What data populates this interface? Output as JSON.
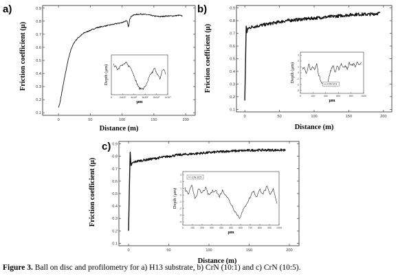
{
  "caption": {
    "label": "Figure 3.",
    "text": " Ball on disc and profilometry for a) H13 substrate, b) CrN (10:1) and c) CrN (10:5)."
  },
  "chart_data": [
    {
      "panel": "a)",
      "type": "line",
      "xlabel": "Distance (m)",
      "ylabel": "Friction coefficient (μ)",
      "xlim": [
        -25,
        215
      ],
      "ylim": [
        0.08,
        0.92
      ],
      "xticks": [
        0,
        50,
        100,
        150,
        200
      ],
      "yticks": [
        0.1,
        0.2,
        0.3,
        0.4,
        0.5,
        0.6,
        0.7,
        0.8,
        0.9
      ],
      "noise": 0.004,
      "series": [
        {
          "x": [
            0,
            2,
            5,
            10,
            15,
            20,
            25,
            30,
            35,
            40,
            45,
            50,
            55,
            60,
            70,
            80,
            90,
            100,
            105,
            108,
            110,
            112,
            115,
            120,
            130,
            140,
            150,
            160,
            170,
            180,
            190,
            195
          ],
          "y": [
            0.14,
            0.17,
            0.25,
            0.38,
            0.5,
            0.59,
            0.64,
            0.67,
            0.69,
            0.71,
            0.72,
            0.73,
            0.74,
            0.75,
            0.76,
            0.77,
            0.78,
            0.79,
            0.8,
            0.8,
            0.75,
            0.82,
            0.84,
            0.85,
            0.855,
            0.85,
            0.84,
            0.835,
            0.84,
            0.84,
            0.845,
            0.84
          ]
        }
      ],
      "inset": {
        "ylabel": "Depth (μm)",
        "xlabel": "μm",
        "xticks": [
          "0",
          "2x10²",
          "4x10²",
          "6x10²",
          "8x10²",
          "1x10³"
        ],
        "yticks": [],
        "legend": "",
        "profile": [
          0.82,
          0.78,
          0.7,
          0.72,
          0.85,
          0.8,
          0.86,
          0.88,
          0.8,
          0.75,
          0.66,
          0.5,
          0.35,
          0.2,
          0.1,
          0.12,
          0.08,
          0.18,
          0.25,
          0.42,
          0.55,
          0.6,
          0.72,
          0.62,
          0.48,
          0.4,
          0.62,
          0.7,
          0.55
        ]
      }
    },
    {
      "panel": "b)",
      "type": "line",
      "xlabel": "Distance (m)",
      "ylabel": "Friction coefficient (μ)",
      "xlim": [
        -12,
        212
      ],
      "ylim": [
        0.08,
        0.92
      ],
      "xticks": [
        0,
        50,
        100,
        150,
        200
      ],
      "yticks": [
        0.1,
        0.2,
        0.3,
        0.4,
        0.5,
        0.6,
        0.7,
        0.8,
        0.9
      ],
      "noise": 0.012,
      "series": [
        {
          "x": [
            0,
            1,
            2,
            3,
            4,
            5,
            10,
            20,
            30,
            40,
            50,
            60,
            80,
            100,
            120,
            140,
            160,
            180,
            195
          ],
          "y": [
            0.17,
            0.45,
            0.76,
            0.7,
            0.73,
            0.74,
            0.75,
            0.76,
            0.77,
            0.78,
            0.79,
            0.8,
            0.81,
            0.82,
            0.83,
            0.84,
            0.85,
            0.85,
            0.86
          ]
        }
      ],
      "inset": {
        "ylabel": "Depth (μm)",
        "xlabel": "μm",
        "xticks": [
          "0",
          "200",
          "400",
          "600",
          "800",
          "1000"
        ],
        "yticks": [
          "3",
          "2",
          "1",
          "0",
          "-1",
          "-2",
          "-3"
        ],
        "legend": "CrN 10:1",
        "profile": [
          0.62,
          0.7,
          0.48,
          0.8,
          0.55,
          0.72,
          0.6,
          0.78,
          0.45,
          0.3,
          0.18,
          0.22,
          0.15,
          0.4,
          0.6,
          0.75,
          0.52,
          0.7,
          0.62,
          0.8,
          0.66,
          0.75,
          0.6,
          0.82,
          0.72,
          0.78,
          0.7,
          0.85,
          0.74,
          0.8
        ]
      }
    },
    {
      "panel": "c)",
      "type": "line",
      "xlabel": "Distance (m)",
      "ylabel": "Friction coefficient (μ)",
      "xlim": [
        -12,
        212
      ],
      "ylim": [
        0.08,
        0.92
      ],
      "xticks": [
        0,
        50,
        100,
        150,
        200
      ],
      "yticks": [
        0.1,
        0.2,
        0.3,
        0.4,
        0.5,
        0.6,
        0.7,
        0.8,
        0.9
      ],
      "noise": 0.009,
      "series": [
        {
          "x": [
            0,
            1,
            2,
            3,
            4,
            6,
            10,
            20,
            30,
            40,
            50,
            60,
            80,
            100,
            120,
            140,
            160,
            180,
            195
          ],
          "y": [
            0.2,
            0.55,
            0.84,
            0.72,
            0.74,
            0.75,
            0.76,
            0.77,
            0.78,
            0.79,
            0.8,
            0.81,
            0.82,
            0.83,
            0.84,
            0.845,
            0.85,
            0.85,
            0.85
          ]
        }
      ],
      "inset": {
        "ylabel": "Depth (μm)",
        "xlabel": "μm",
        "xticks": [
          "0",
          "100",
          "200",
          "300",
          "400",
          "500",
          "600",
          "700",
          "800",
          "900",
          "1000"
        ],
        "yticks": [
          "3",
          "2",
          "1",
          "0",
          "-1",
          "-2",
          "-3",
          "-4"
        ],
        "legend": "CrN 10:5",
        "profile": [
          0.72,
          0.6,
          0.78,
          0.52,
          0.7,
          0.62,
          0.74,
          0.58,
          0.66,
          0.7,
          0.55,
          0.68,
          0.6,
          0.46,
          0.34,
          0.2,
          0.1,
          0.24,
          0.4,
          0.52,
          0.68,
          0.55,
          0.7,
          0.62,
          0.76,
          0.58,
          0.72,
          0.4
        ]
      }
    }
  ]
}
